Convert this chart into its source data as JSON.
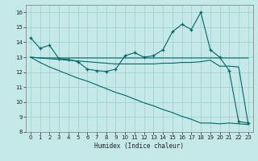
{
  "title": "",
  "xlabel": "Humidex (Indice chaleur)",
  "xlim": [
    -0.5,
    23.5
  ],
  "ylim": [
    8,
    16.5
  ],
  "yticks": [
    8,
    9,
    10,
    11,
    12,
    13,
    14,
    15,
    16
  ],
  "xticks": [
    0,
    1,
    2,
    3,
    4,
    5,
    6,
    7,
    8,
    9,
    10,
    11,
    12,
    13,
    14,
    15,
    16,
    17,
    18,
    19,
    20,
    21,
    22,
    23
  ],
  "bg_color": "#c5e8e8",
  "grid_color": "#9dcece",
  "line_color": "#006868",
  "line1": [
    14.3,
    13.6,
    13.8,
    12.9,
    12.85,
    12.7,
    12.2,
    12.1,
    12.05,
    12.2,
    13.1,
    13.3,
    13.0,
    13.1,
    13.5,
    14.7,
    15.2,
    14.85,
    16.0,
    13.5,
    13.0,
    12.1,
    8.7,
    8.6
  ],
  "line2": [
    13.0,
    12.95,
    12.9,
    12.85,
    12.8,
    12.75,
    12.7,
    12.65,
    12.6,
    12.55,
    12.55,
    12.55,
    12.55,
    12.55,
    12.6,
    12.6,
    12.65,
    12.65,
    12.7,
    12.8,
    12.4,
    12.4,
    12.35,
    8.55
  ],
  "line3": [
    13.0,
    12.95,
    12.95,
    12.95,
    12.95,
    12.95,
    12.95,
    12.95,
    12.95,
    12.95,
    12.95,
    12.95,
    12.95,
    12.95,
    12.95,
    12.95,
    12.95,
    12.95,
    12.95,
    12.95,
    12.95,
    12.95,
    12.95,
    12.95
  ],
  "line4": [
    13.0,
    12.65,
    12.35,
    12.1,
    11.85,
    11.6,
    11.4,
    11.15,
    10.9,
    10.65,
    10.45,
    10.2,
    9.95,
    9.75,
    9.5,
    9.3,
    9.05,
    8.85,
    8.6,
    8.6,
    8.55,
    8.6,
    8.55,
    8.5
  ]
}
